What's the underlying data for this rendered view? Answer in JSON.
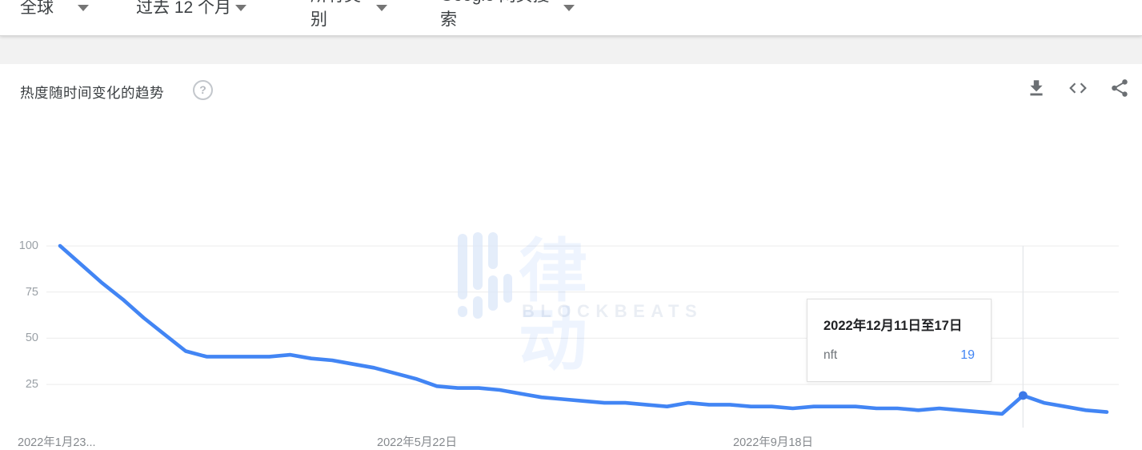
{
  "header": {
    "filters": [
      {
        "label": "全球"
      },
      {
        "label": "过去 12 个月"
      },
      {
        "label": "所有类别"
      },
      {
        "label": "Google 网页搜索"
      }
    ]
  },
  "panel": {
    "title": "热度随时间变化的趋势",
    "help_icon": "?",
    "action_icons": [
      "download-icon",
      "embed-code-icon",
      "share-icon"
    ]
  },
  "watermark": {
    "logo": "blockbeats-bars-logo",
    "cjk": "律动",
    "latin": "BLOCKBEATS"
  },
  "tooltip": {
    "date": "2022年12月11日至17日",
    "term": "nft",
    "value": "19"
  },
  "chart_data": {
    "type": "line",
    "title": "热度随时间变化的趋势",
    "series": [
      {
        "name": "nft",
        "values": [
          100,
          90,
          80,
          71,
          61,
          52,
          43,
          40,
          40,
          40,
          40,
          41,
          39,
          38,
          36,
          34,
          31,
          28,
          24,
          23,
          23,
          22,
          20,
          18,
          17,
          16,
          15,
          15,
          14,
          13,
          15,
          14,
          14,
          13,
          13,
          12,
          13,
          13,
          13,
          12,
          12,
          11,
          12,
          11,
          10,
          9,
          19,
          15,
          13,
          11,
          10
        ]
      }
    ],
    "x_tick_labels": [
      "2022年1月23...",
      "2022年5月22日",
      "2022年9月18日"
    ],
    "y_tick_labels": [
      "100",
      "75",
      "50",
      "25"
    ],
    "ylim": [
      0,
      100
    ],
    "grid": "horizontal",
    "legend": "none",
    "line_color": "#4285f4",
    "marker_color": "#3b78e8",
    "highlight": {
      "index": 46,
      "value": 19,
      "date": "2022年12月11日至17日",
      "term": "nft"
    }
  },
  "colors": {
    "accent_blue": "#4285f4",
    "axis_text": "#9aa0a6",
    "gridline": "#ececec",
    "axis_line": "#dadce0",
    "band_gray": "#f2f2f2"
  }
}
